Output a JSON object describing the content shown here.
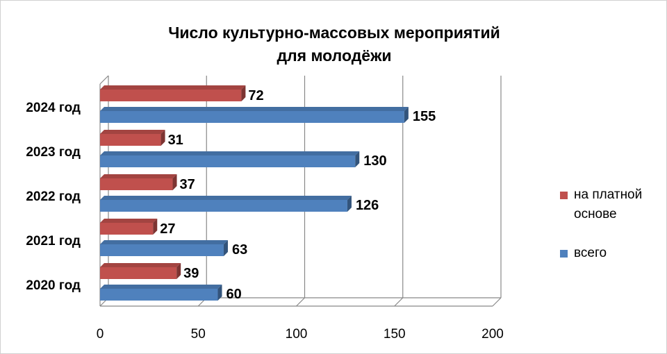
{
  "chart_data": {
    "type": "bar",
    "orientation": "horizontal",
    "title": [
      "Число культурно-массовых мероприятий",
      "для молодёжи"
    ],
    "categories": [
      "2020 год",
      "2021 год",
      "2022 год",
      "2023 год",
      "2024 год"
    ],
    "series": [
      {
        "name": "на платной основе",
        "values": [
          39,
          27,
          37,
          31,
          72
        ],
        "color": "#c0504d"
      },
      {
        "name": "всего",
        "values": [
          60,
          63,
          126,
          130,
          155
        ],
        "color": "#4f81bd"
      }
    ],
    "xlim": [
      0,
      200
    ],
    "xticks": [
      0,
      50,
      100,
      150,
      200
    ],
    "grid": true,
    "legend": "right",
    "legend_labels": [
      [
        "на платной",
        "основе"
      ],
      [
        "всего"
      ]
    ]
  }
}
